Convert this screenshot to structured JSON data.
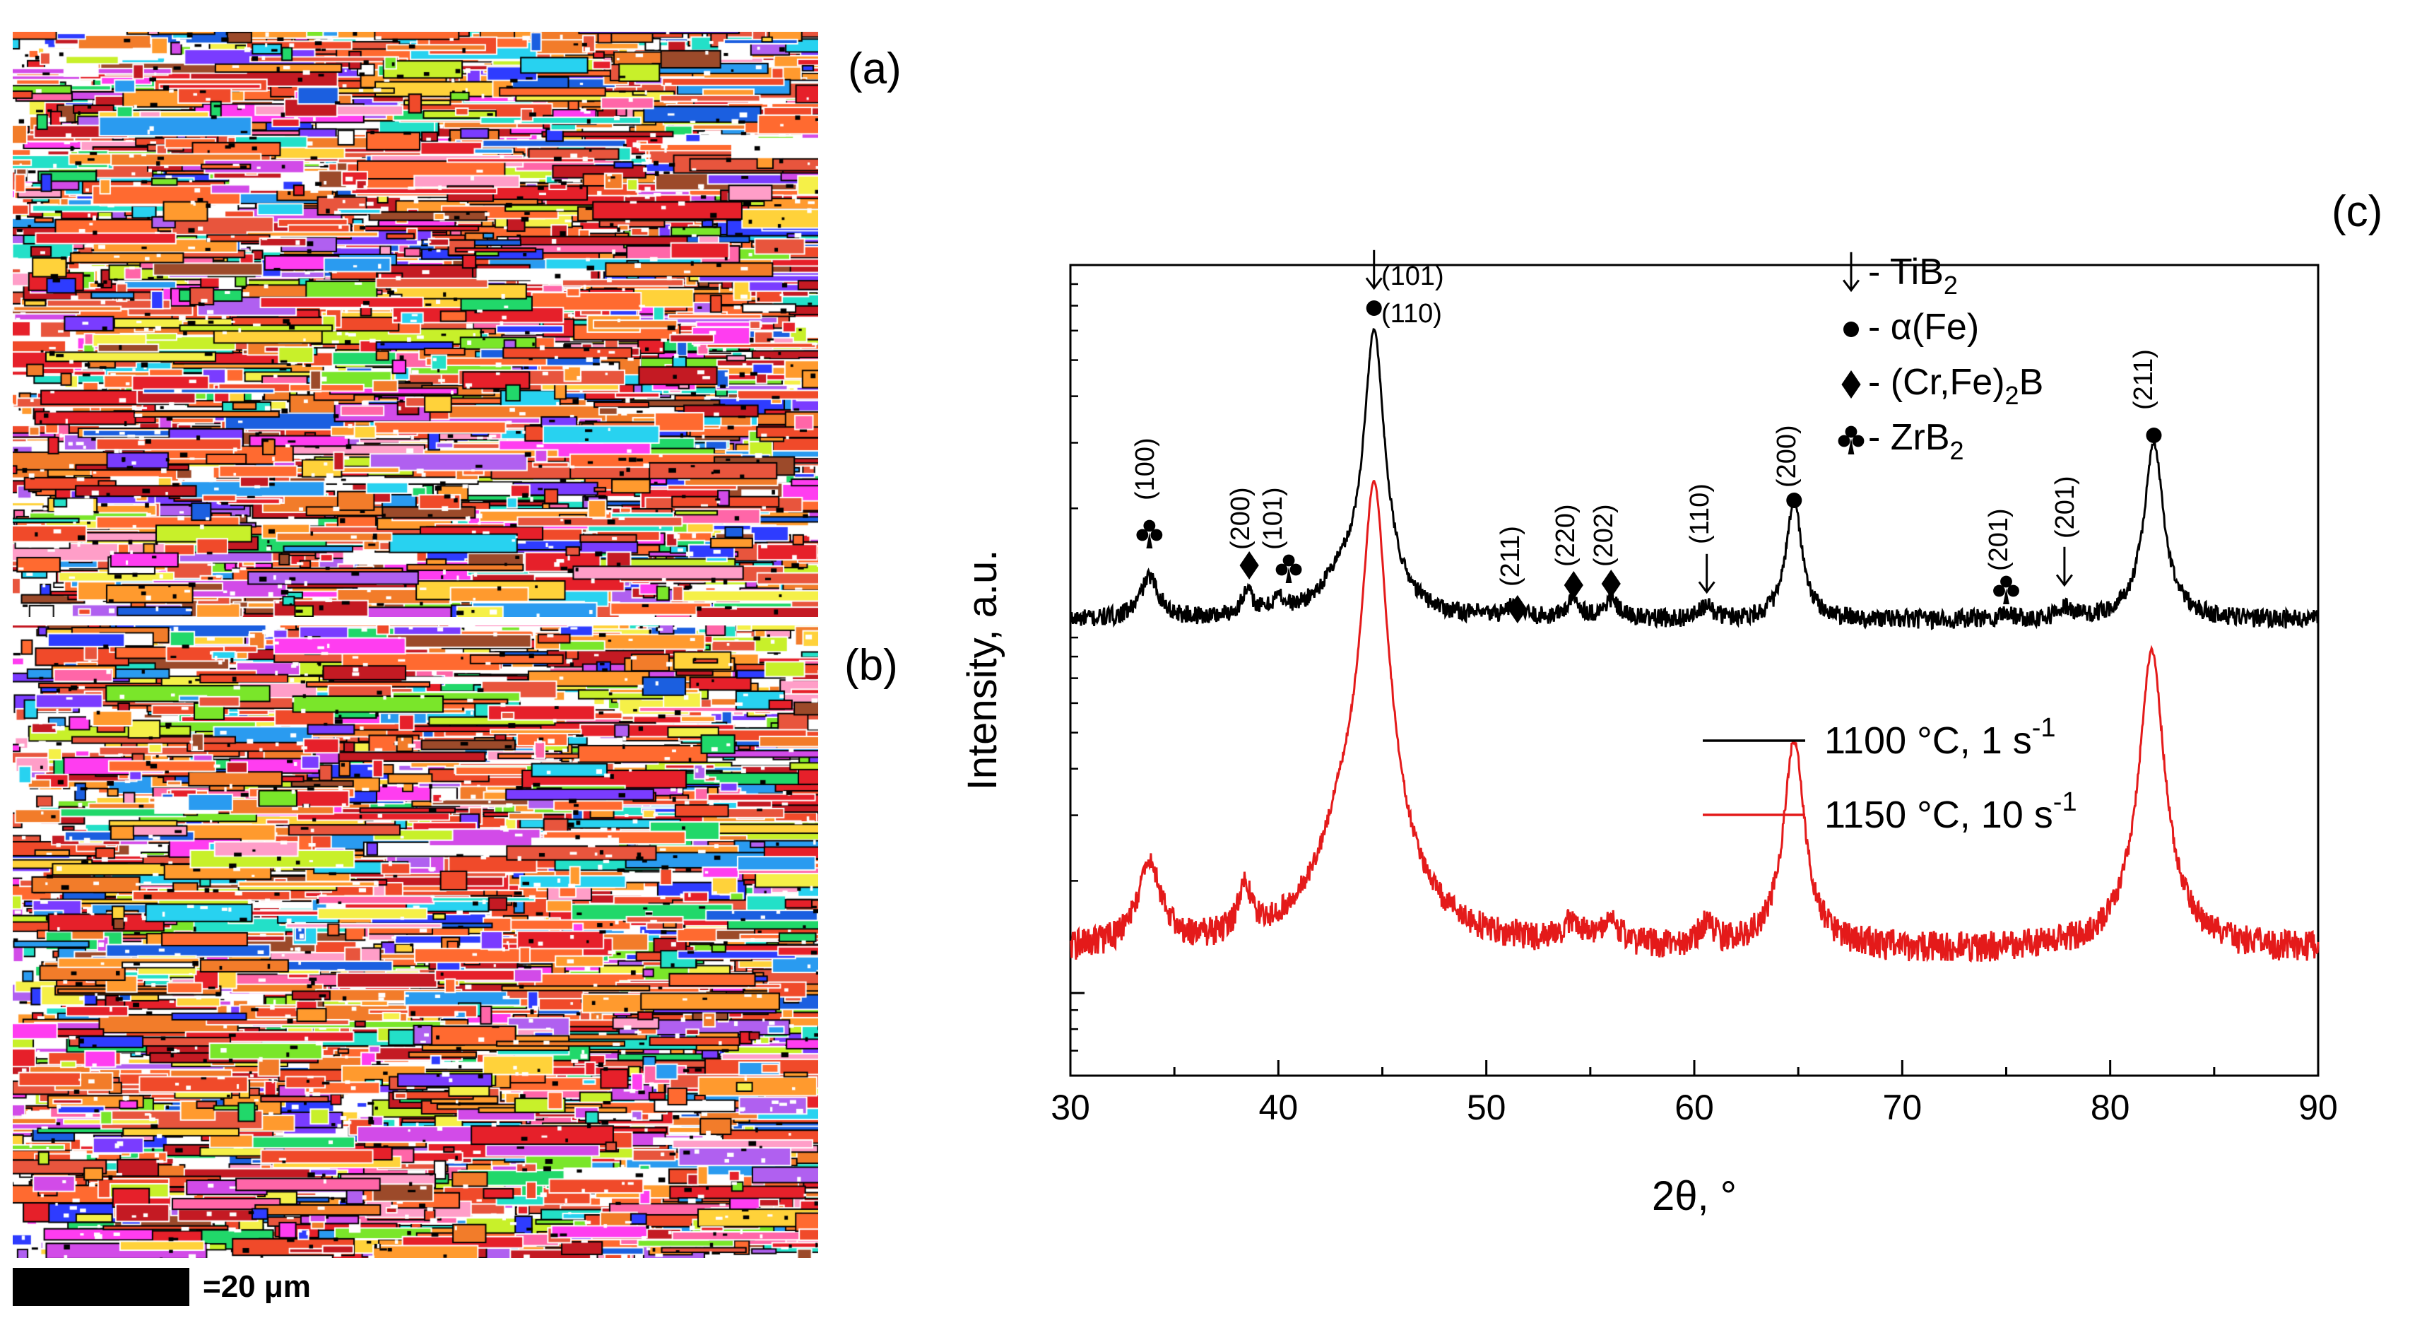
{
  "panels": {
    "a": "(a)",
    "b": "(b)",
    "c": "(c)"
  },
  "scale_bar": {
    "label": "=20 μm"
  },
  "maps": {
    "colors": [
      "#e6202a",
      "#c41a23",
      "#f04a2a",
      "#ff6a30",
      "#e8553d",
      "#ff9a2e",
      "#f27c2a",
      "#ff3df0",
      "#d24be8",
      "#b060f0",
      "#7a3cff",
      "#2e3cff",
      "#1b5fe0",
      "#2a9bf0",
      "#28d2f0",
      "#23e0c8",
      "#21d86a",
      "#7ae62a",
      "#c8f02a",
      "#f5f048",
      "#ffd23a",
      "#ff9ec8",
      "#ff66a8",
      "#9c4a2a",
      "#ffffff"
    ]
  },
  "chart_data": {
    "type": "line",
    "xlabel": "2θ, °",
    "ylabel": "Intensity, a.u.",
    "xlim": [
      30,
      90
    ],
    "x_ticks": [
      30,
      40,
      50,
      60,
      70,
      80,
      90
    ],
    "log_scale_y": true,
    "grid": false,
    "legend_position": "center-right",
    "series": [
      {
        "name": "1100 °C, 1 s⁻¹",
        "color": "#000000",
        "baseline": 1.0,
        "noise": 0.06,
        "peaks": [
          {
            "x": 33.8,
            "height": 0.3,
            "width": 0.5
          },
          {
            "x": 38.5,
            "height": 0.16,
            "width": 0.35
          },
          {
            "x": 40.0,
            "height": 0.1,
            "width": 0.35
          },
          {
            "x": 43.0,
            "height": 0.22,
            "width": 1.0
          },
          {
            "x": 44.6,
            "height": 5.0,
            "width": 0.42
          },
          {
            "x": 51.3,
            "height": 0.08,
            "width": 0.4
          },
          {
            "x": 54.2,
            "height": 0.12,
            "width": 0.4
          },
          {
            "x": 56.0,
            "height": 0.12,
            "width": 0.4
          },
          {
            "x": 60.6,
            "height": 0.08,
            "width": 0.4
          },
          {
            "x": 64.8,
            "height": 1.1,
            "width": 0.38
          },
          {
            "x": 75.0,
            "height": 0.04,
            "width": 0.4
          },
          {
            "x": 77.8,
            "height": 0.07,
            "width": 0.4
          },
          {
            "x": 82.1,
            "height": 2.0,
            "width": 0.44
          }
        ]
      },
      {
        "name": "1150 °C, 10 s⁻¹",
        "color": "#e41a1a",
        "baseline": 0.13,
        "noise": 0.1,
        "peaks": [
          {
            "x": 33.8,
            "height": 0.09,
            "width": 0.6
          },
          {
            "x": 38.4,
            "height": 0.05,
            "width": 0.35
          },
          {
            "x": 43.2,
            "height": 0.1,
            "width": 1.1
          },
          {
            "x": 44.6,
            "height": 2.2,
            "width": 0.48
          },
          {
            "x": 54.2,
            "height": 0.02,
            "width": 0.5
          },
          {
            "x": 56.0,
            "height": 0.02,
            "width": 0.5
          },
          {
            "x": 60.6,
            "height": 0.02,
            "width": 0.4
          },
          {
            "x": 64.8,
            "height": 0.35,
            "width": 0.45
          },
          {
            "x": 82.0,
            "height": 0.7,
            "width": 0.5
          }
        ]
      }
    ],
    "legend": {
      "phases": [
        {
          "marker": "arrow",
          "main": " - TiB",
          "sub": "2",
          "tail": ""
        },
        {
          "marker": "circle",
          "main": " - α(Fe)",
          "sub": "",
          "tail": ""
        },
        {
          "marker": "diamond",
          "main": "- (Cr,Fe)",
          "sub": "2",
          "tail": "B"
        },
        {
          "marker": "club",
          "main": " - ZrB",
          "sub": "2",
          "tail": ""
        }
      ],
      "series": [
        {
          "label": "1100 °C, 1 s",
          "sup": "-1",
          "color": "#000000"
        },
        {
          "label": "1150 °C, 10 s",
          "sup": "-1",
          "color": "#e41a1a"
        }
      ]
    },
    "annotations": [
      {
        "x": 33.8,
        "marker": "club",
        "hkl": "(100)"
      },
      {
        "x": 38.6,
        "marker": "diamond",
        "hkl": "(200)"
      },
      {
        "x": 40.5,
        "marker": "club",
        "hkl": "(101)"
      },
      {
        "x": 44.6,
        "marker": "arrow",
        "hkl": "(101)"
      },
      {
        "x": 44.6,
        "marker": "circle",
        "hkl": "(110)"
      },
      {
        "x": 51.5,
        "marker": "diamond",
        "hkl": "(211)"
      },
      {
        "x": 54.2,
        "marker": "diamond",
        "hkl": "(220)"
      },
      {
        "x": 56.0,
        "marker": "diamond",
        "hkl": "(202)"
      },
      {
        "x": 60.6,
        "marker": "arrow",
        "hkl": "(110)"
      },
      {
        "x": 64.8,
        "marker": "circle",
        "hkl": "(200)"
      },
      {
        "x": 75.0,
        "marker": "club",
        "hkl": "(201)"
      },
      {
        "x": 77.8,
        "marker": "arrow",
        "hkl": "(201)"
      },
      {
        "x": 82.1,
        "marker": "circle",
        "hkl": "(211)"
      }
    ]
  }
}
